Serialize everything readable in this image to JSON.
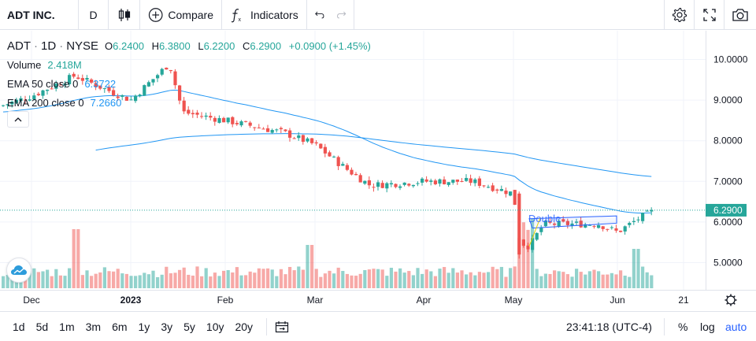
{
  "toolbar": {
    "symbol": "ADT INC.",
    "interval": "D",
    "compare_label": "Compare",
    "indicators_label": "Indicators"
  },
  "legend": {
    "ticker": "ADT",
    "interval": "1D",
    "exchange": "NYSE",
    "sep": "·",
    "o_key": "O",
    "o_val": "6.2400",
    "h_key": "H",
    "h_val": "6.3800",
    "l_key": "L",
    "l_val": "6.2200",
    "c_key": "C",
    "c_val": "6.2900",
    "change": "+0.0900 (+1.45%)",
    "volume_label": "Volume",
    "volume_value": "2.418M",
    "ema50_label": "EMA 50 close 0",
    "ema50_value": "6.3722",
    "ema200_label": "EMA 200 close 0",
    "ema200_value": "7.2660"
  },
  "price_axis": {
    "labels": [
      "10.0000",
      "9.0000",
      "8.0000",
      "7.0000",
      "6.0000",
      "5.0000"
    ],
    "last_price": "6.2900"
  },
  "time_axis": {
    "labels": [
      "Dec",
      "2023",
      "Feb",
      "Mar",
      "Apr",
      "May",
      "Jun",
      "21"
    ]
  },
  "drawing_label": "Double",
  "bottom": {
    "ranges": [
      "1d",
      "5d",
      "1m",
      "3m",
      "6m",
      "1y",
      "3y",
      "5y",
      "10y",
      "20y"
    ],
    "time": "23:41:18 (UTC-4)",
    "percent": "%",
    "log": "log",
    "auto": "auto"
  },
  "colors": {
    "up": "#26a69a",
    "down": "#ef5350",
    "ema50": "#2196f3",
    "ema200": "#2196f3",
    "accent": "#2962ff",
    "price_tag": "#26a69a"
  },
  "chart_data": {
    "type": "candlestick",
    "symbol": "ADT",
    "ylim": [
      4.6,
      10.6
    ],
    "series": [
      {
        "name": "EMA 50 close 0",
        "last": 6.3722
      },
      {
        "name": "EMA 200 close 0",
        "last": 7.266
      }
    ],
    "close_anchors": [
      {
        "x": "Dec",
        "close": 8.9
      },
      {
        "x": "2023",
        "close": 9.0
      },
      {
        "x": "Jan mid",
        "close": 9.8
      },
      {
        "x": "Feb",
        "close": 8.5
      },
      {
        "x": "Mar",
        "close": 8.0
      },
      {
        "x": "Mar late",
        "close": 7.2
      },
      {
        "x": "Apr",
        "close": 7.0
      },
      {
        "x": "May",
        "close": 6.7
      },
      {
        "x": "May early",
        "close": 5.3
      },
      {
        "x": "Jun",
        "close": 5.8
      },
      {
        "x": "Jun mid",
        "close": 6.29
      }
    ],
    "last": {
      "open": 6.24,
      "high": 6.38,
      "low": 6.22,
      "close": 6.29,
      "change": 0.09,
      "change_pct": 1.45
    },
    "last_volume": "2.418M"
  }
}
